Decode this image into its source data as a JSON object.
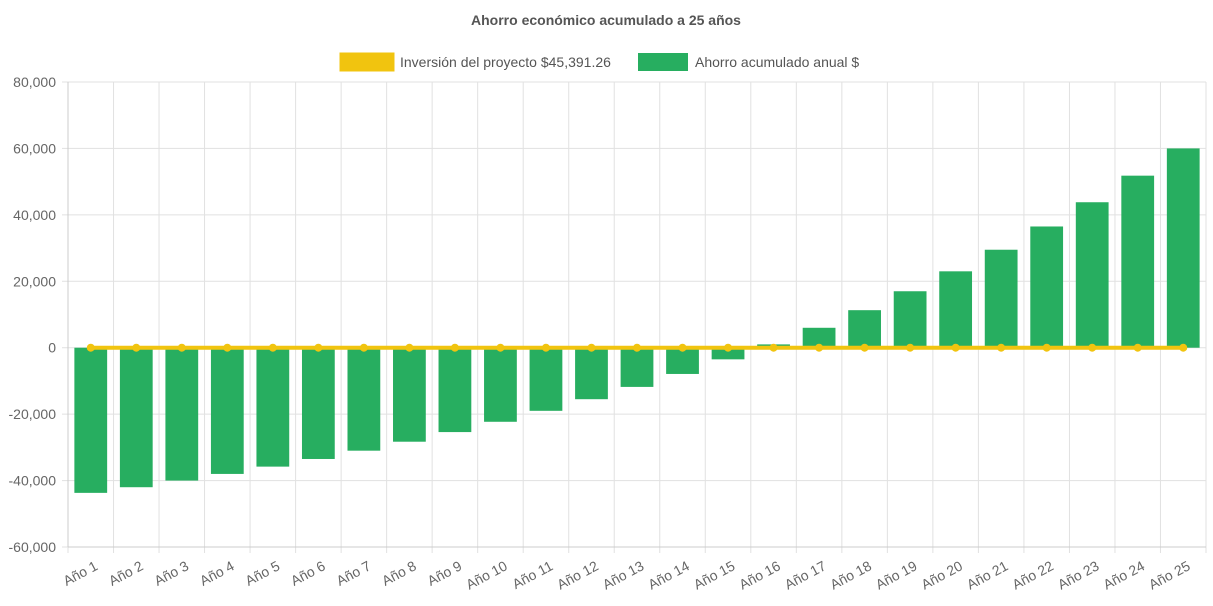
{
  "chart_data": {
    "type": "bar",
    "title": "Ahorro económico acumulado a 25 años",
    "xlabel": "",
    "ylabel": "",
    "ylim": [
      -60000,
      80000
    ],
    "yticks": [
      80000,
      60000,
      40000,
      20000,
      0,
      -20000,
      -40000,
      -60000
    ],
    "ytick_labels": [
      "80,000",
      "60,000",
      "40,000",
      "20,000",
      "0",
      "-20,000",
      "-40,000",
      "-60,000"
    ],
    "grid": true,
    "legend_position": "top",
    "categories": [
      "Año 1",
      "Año 2",
      "Año 3",
      "Año 4",
      "Año 5",
      "Año 6",
      "Año 7",
      "Año 8",
      "Año 9",
      "Año 10",
      "Año 11",
      "Año 12",
      "Año 13",
      "Año 14",
      "Año 15",
      "Año 16",
      "Año 17",
      "Año 18",
      "Año 19",
      "Año 20",
      "Año 21",
      "Año 22",
      "Año 23",
      "Año 24",
      "Año 25"
    ],
    "series": [
      {
        "name": "Inversión del proyecto $45,391.26",
        "type": "line",
        "color": "#f1c40f",
        "values": [
          0,
          0,
          0,
          0,
          0,
          0,
          0,
          0,
          0,
          0,
          0,
          0,
          0,
          0,
          0,
          0,
          0,
          0,
          0,
          0,
          0,
          0,
          0,
          0,
          0
        ]
      },
      {
        "name": "Ahorro acumulado anual $",
        "type": "bar",
        "color": "#27ae60",
        "values": [
          -43700,
          -42000,
          -40000,
          -38000,
          -35800,
          -33500,
          -31000,
          -28300,
          -25400,
          -22300,
          -19000,
          -15500,
          -11800,
          -7900,
          -3500,
          1000,
          6000,
          11300,
          17000,
          23000,
          29500,
          36500,
          43800,
          51800,
          60000
        ]
      }
    ]
  }
}
